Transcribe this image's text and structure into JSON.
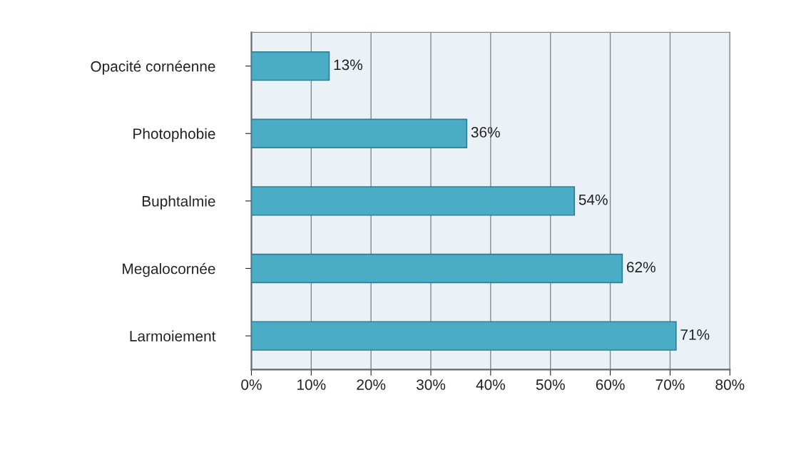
{
  "chart_data": {
    "type": "bar",
    "orientation": "horizontal",
    "categories": [
      "Opacité cornéenne",
      "Photophobie",
      "Buphtalmie",
      "Megalocornée",
      "Larmoiement"
    ],
    "values": [
      13,
      36,
      54,
      62,
      71
    ],
    "value_labels": [
      "13%",
      "36%",
      "54%",
      "62%",
      "71%"
    ],
    "color": "#4bacc6",
    "xlim": [
      0,
      80
    ],
    "xticks": [
      {
        "value": 0,
        "label": "0%"
      },
      {
        "value": 10,
        "label": "10%"
      },
      {
        "value": 20,
        "label": "20%"
      },
      {
        "value": 30,
        "label": "30%"
      },
      {
        "value": 40,
        "label": "40%"
      },
      {
        "value": 50,
        "label": "50%"
      },
      {
        "value": 60,
        "label": "60%"
      },
      {
        "value": 70,
        "label": "70%"
      },
      {
        "value": 80,
        "label": "80%"
      }
    ],
    "grid": "x"
  }
}
